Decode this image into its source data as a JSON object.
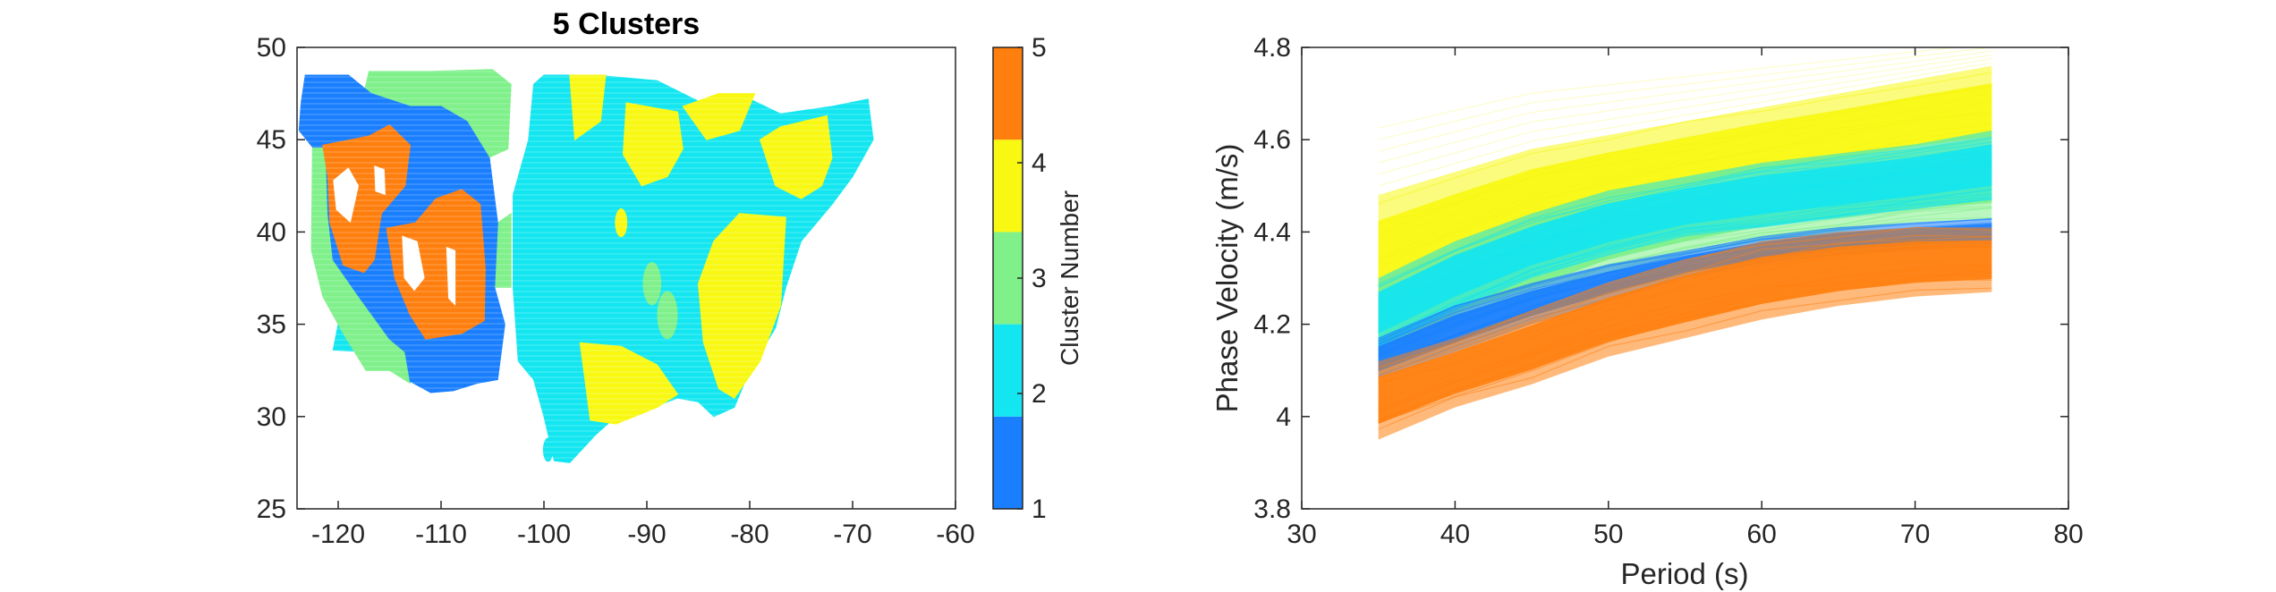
{
  "chart_data": [
    {
      "type": "heatmap",
      "title": "5 Clusters",
      "xlim": [
        -124,
        -60
      ],
      "ylim": [
        25,
        50
      ],
      "xticks": [
        -120,
        -110,
        -100,
        -90,
        -80,
        -70,
        -60
      ],
      "yticks": [
        25,
        30,
        35,
        40,
        45,
        50
      ],
      "colorbar": {
        "label": "Cluster Number",
        "ticks": [
          1,
          2,
          3,
          4,
          5
        ],
        "range": [
          1,
          5
        ],
        "colors": [
          "#1a7fff",
          "#13e6f0",
          "#7ff08a",
          "#f8f812",
          "#ff7f0e"
        ]
      },
      "regions": [
        {
          "cluster": 2,
          "poly": [
            [
              -100,
              48.5
            ],
            [
              -95,
              48.5
            ],
            [
              -89,
              48.2
            ],
            [
              -84,
              46.8
            ],
            [
              -80,
              47.2
            ],
            [
              -77,
              46.4
            ],
            [
              -72,
              46.8
            ],
            [
              -68.5,
              47.2
            ],
            [
              -68,
              45
            ],
            [
              -70,
              43
            ],
            [
              -72,
              41.5
            ],
            [
              -75,
              39.5
            ],
            [
              -76.5,
              37
            ],
            [
              -77.5,
              34.8
            ],
            [
              -80,
              32.5
            ],
            [
              -81.5,
              30.5
            ],
            [
              -83.5,
              30
            ],
            [
              -85,
              30.8
            ],
            [
              -87,
              31
            ],
            [
              -89.5,
              30.5
            ],
            [
              -93,
              30
            ],
            [
              -95,
              29
            ],
            [
              -97.5,
              27.5
            ],
            [
              -99,
              27.6
            ],
            [
              -100,
              30
            ],
            [
              -101,
              32
            ],
            [
              -102.5,
              33
            ],
            [
              -103,
              37
            ],
            [
              -103,
              42
            ],
            [
              -101.5,
              45
            ],
            [
              -101,
              48
            ]
          ]
        },
        {
          "cluster": 2,
          "poly": [
            [
              -120.5,
              33.6
            ],
            [
              -117,
              33.5
            ],
            [
              -115,
              34
            ],
            [
              -115.5,
              35.5
            ],
            [
              -118,
              35.2
            ],
            [
              -120,
              35
            ]
          ]
        },
        {
          "cluster": 4,
          "poly": [
            [
              -79,
              45
            ],
            [
              -77,
              45.7
            ],
            [
              -72.5,
              46.3
            ],
            [
              -72,
              44
            ],
            [
              -73,
              42.5
            ],
            [
              -75,
              41.8
            ],
            [
              -77.5,
              42.5
            ]
          ]
        },
        {
          "cluster": 4,
          "poly": [
            [
              -86.5,
              46.8
            ],
            [
              -83,
              47.5
            ],
            [
              -79.5,
              47.5
            ],
            [
              -81,
              45.5
            ],
            [
              -84.2,
              45
            ]
          ]
        },
        {
          "cluster": 4,
          "poly": [
            [
              -92,
              47
            ],
            [
              -87,
              46.5
            ],
            [
              -86.5,
              44.5
            ],
            [
              -88,
              43
            ],
            [
              -90.5,
              42.5
            ],
            [
              -92.3,
              44.2
            ]
          ]
        },
        {
          "cluster": 4,
          "poly": [
            [
              -81,
              41
            ],
            [
              -76.5,
              40.8
            ],
            [
              -77,
              36
            ],
            [
              -79,
              33
            ],
            [
              -81.5,
              31
            ],
            [
              -83,
              31.5
            ],
            [
              -84.5,
              34
            ],
            [
              -85,
              37.2
            ],
            [
              -83.5,
              39.5
            ]
          ]
        },
        {
          "cluster": 4,
          "poly": [
            [
              -96.5,
              34
            ],
            [
              -92.5,
              33.8
            ],
            [
              -89,
              32.8
            ],
            [
              -87,
              31.2
            ],
            [
              -89,
              30.5
            ],
            [
              -93,
              29.6
            ],
            [
              -95.5,
              29.8
            ]
          ]
        },
        {
          "cluster": 4,
          "poly": [
            [
              -97.5,
              48.5
            ],
            [
              -94,
              48.5
            ],
            [
              -94.5,
              46
            ],
            [
              -97,
              45
            ]
          ]
        },
        {
          "cluster": 3,
          "poly": [
            [
              -117,
              48.7
            ],
            [
              -111,
              48.7
            ],
            [
              -105,
              48.8
            ],
            [
              -103.2,
              48
            ],
            [
              -103.5,
              44.5
            ],
            [
              -105.5,
              44
            ],
            [
              -107.5,
              46
            ],
            [
              -110,
              46.8
            ],
            [
              -113,
              46.8
            ],
            [
              -116,
              47.3
            ],
            [
              -117.5,
              47.5
            ]
          ]
        },
        {
          "cluster": 3,
          "poly": [
            [
              -122.5,
              44.6
            ],
            [
              -121.2,
              44.6
            ],
            [
              -121,
              41
            ],
            [
              -120.5,
              38.5
            ],
            [
              -118,
              36.5
            ],
            [
              -115,
              34.2
            ],
            [
              -113.5,
              33.5
            ],
            [
              -113,
              31.8
            ],
            [
              -115,
              32.5
            ],
            [
              -117.3,
              32.5
            ],
            [
              -119.5,
              34.5
            ],
            [
              -121.5,
              36.5
            ],
            [
              -122.6,
              39
            ]
          ]
        },
        {
          "cluster": 3,
          "poly": [
            [
              -105,
              37
            ],
            [
              -103.2,
              37
            ],
            [
              -103.2,
              41
            ],
            [
              -104.5,
              40.5
            ]
          ]
        },
        {
          "cluster": 1,
          "poly": [
            [
              -123.2,
              48.5
            ],
            [
              -119,
              48.5
            ],
            [
              -116.8,
              47.5
            ],
            [
              -113,
              46.8
            ],
            [
              -110,
              46.8
            ],
            [
              -107.5,
              46
            ],
            [
              -105.3,
              44
            ],
            [
              -104.5,
              40.5
            ],
            [
              -104.8,
              37
            ],
            [
              -103.8,
              35
            ],
            [
              -104.5,
              32
            ],
            [
              -106.5,
              31.8
            ],
            [
              -108.8,
              31.4
            ],
            [
              -111,
              31.3
            ],
            [
              -113,
              31.9
            ],
            [
              -113.5,
              33.5
            ],
            [
              -115,
              34.2
            ],
            [
              -118,
              36.5
            ],
            [
              -120.5,
              38.5
            ],
            [
              -121,
              41
            ],
            [
              -121.2,
              44.6
            ],
            [
              -122.5,
              44.6
            ],
            [
              -123.8,
              45.5
            ],
            [
              -123.6,
              47
            ]
          ]
        },
        {
          "cluster": 5,
          "poly": [
            [
              -121.5,
              44.7
            ],
            [
              -117,
              45.2
            ],
            [
              -115,
              45.8
            ],
            [
              -113,
              44.7
            ],
            [
              -113.5,
              42.5
            ],
            [
              -115.8,
              41
            ],
            [
              -116.5,
              38.5
            ],
            [
              -117.5,
              37.8
            ],
            [
              -119.5,
              38.2
            ],
            [
              -120.8,
              40.5
            ],
            [
              -121,
              43
            ]
          ]
        },
        {
          "cluster": 5,
          "poly": [
            [
              -115.3,
              40.2
            ],
            [
              -112.5,
              40.5
            ],
            [
              -110.5,
              41.8
            ],
            [
              -108,
              42.3
            ],
            [
              -106.2,
              41.5
            ],
            [
              -105.7,
              38
            ],
            [
              -105.8,
              35.2
            ],
            [
              -108,
              34.5
            ],
            [
              -111.5,
              34.2
            ],
            [
              -113,
              35.5
            ],
            [
              -114.5,
              37.5
            ]
          ]
        }
      ],
      "holes": [
        [
          [
            -120.5,
            42.8
          ],
          [
            -119,
            43.5
          ],
          [
            -118,
            42.5
          ],
          [
            -118.8,
            40.5
          ],
          [
            -120.2,
            41.2
          ]
        ],
        [
          [
            -116.5,
            43.6
          ],
          [
            -115.5,
            43.4
          ],
          [
            -115.4,
            42
          ],
          [
            -116.4,
            42.2
          ]
        ],
        [
          [
            -113.8,
            39.8
          ],
          [
            -112.3,
            39.5
          ],
          [
            -111.6,
            37.5
          ],
          [
            -112.6,
            36.8
          ],
          [
            -113.6,
            37.5
          ]
        ],
        [
          [
            -109.5,
            39.2
          ],
          [
            -108.6,
            39
          ],
          [
            -108.6,
            36
          ],
          [
            -109.3,
            36.4
          ]
        ]
      ],
      "spots": [
        {
          "cluster": 3,
          "cx": -89.5,
          "cy": 37.2,
          "r": 0.9
        },
        {
          "cluster": 3,
          "cx": -88,
          "cy": 35.5,
          "r": 1.0
        },
        {
          "cluster": 4,
          "cx": -92.5,
          "cy": 40.5,
          "r": 0.6
        },
        {
          "cluster": 2,
          "cx": -99.6,
          "cy": 28.2,
          "r": 0.5
        }
      ]
    },
    {
      "type": "line",
      "xlabel": "Period (s)",
      "ylabel": "Phase Velocity (m/s)",
      "xlim": [
        30,
        80
      ],
      "ylim": [
        3.8,
        4.8
      ],
      "xticks": [
        30,
        40,
        50,
        60,
        70,
        80
      ],
      "yticks": [
        3.8,
        4,
        4.2,
        4.4,
        4.6,
        4.8
      ],
      "x": [
        35,
        40,
        45,
        50,
        55,
        60,
        65,
        70,
        75
      ],
      "series": [
        {
          "cluster": 4,
          "color": "#f8f812",
          "low": [
            4.2,
            4.29,
            4.36,
            4.42,
            4.46,
            4.5,
            4.52,
            4.55,
            4.57
          ],
          "high": [
            4.48,
            4.53,
            4.58,
            4.61,
            4.64,
            4.67,
            4.7,
            4.73,
            4.76
          ]
        },
        {
          "cluster": 3,
          "color": "#7ff08a",
          "low": [
            4.1,
            4.19,
            4.25,
            4.31,
            4.35,
            4.38,
            4.4,
            4.42,
            4.43
          ],
          "high": [
            4.27,
            4.35,
            4.41,
            4.46,
            4.5,
            4.54,
            4.56,
            4.58,
            4.6
          ]
        },
        {
          "cluster": 2,
          "color": "#13e6f0",
          "low": [
            4.15,
            4.23,
            4.3,
            4.35,
            4.39,
            4.41,
            4.43,
            4.45,
            4.47
          ],
          "high": [
            4.3,
            4.38,
            4.44,
            4.49,
            4.52,
            4.55,
            4.57,
            4.59,
            4.62
          ]
        },
        {
          "cluster": 1,
          "color": "#1a7fff",
          "low": [
            4.08,
            4.14,
            4.2,
            4.25,
            4.3,
            4.33,
            4.35,
            4.36,
            4.37
          ],
          "high": [
            4.17,
            4.24,
            4.29,
            4.33,
            4.36,
            4.39,
            4.41,
            4.42,
            4.43
          ]
        },
        {
          "cluster": 5,
          "color": "#ff7f0e",
          "low": [
            3.95,
            4.02,
            4.07,
            4.13,
            4.17,
            4.21,
            4.24,
            4.26,
            4.27
          ],
          "high": [
            4.12,
            4.17,
            4.23,
            4.29,
            4.34,
            4.38,
            4.4,
            4.41,
            4.41
          ]
        }
      ]
    }
  ]
}
